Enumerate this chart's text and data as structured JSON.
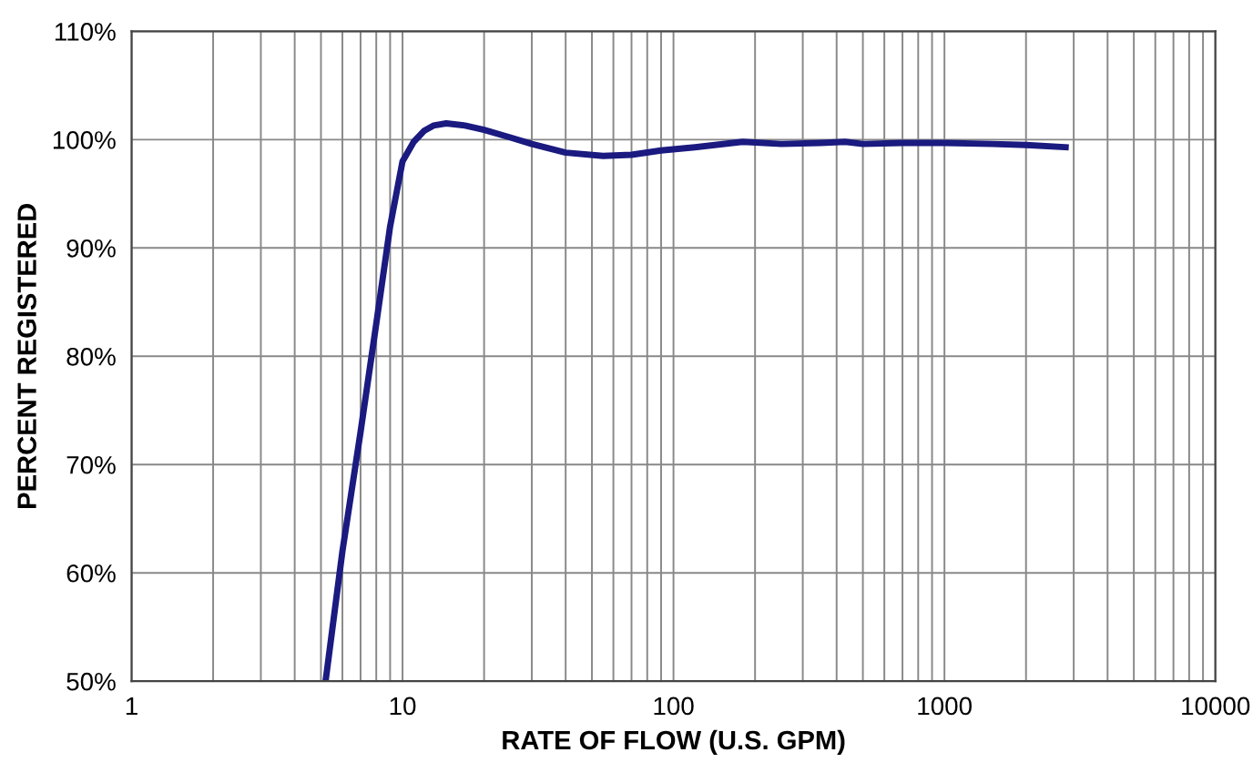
{
  "chart_data": {
    "type": "line",
    "xlabel": "RATE OF FLOW (U.S. GPM)",
    "ylabel": "PERCENT REGISTERED",
    "log": "x",
    "grid": true,
    "marker": "none",
    "line_style": "solid",
    "xlim": [
      1,
      10000
    ],
    "ylim": [
      50,
      110
    ],
    "xticks": [
      1,
      {
        "value": 2,
        "label": null
      },
      {
        "value": 3,
        "label": null
      },
      {
        "value": 4,
        "label": null
      },
      {
        "value": 5,
        "label": null
      },
      {
        "value": 6,
        "label": null
      },
      {
        "value": 7,
        "label": null
      },
      {
        "value": 8,
        "label": null
      },
      {
        "value": 9,
        "label": null
      },
      10,
      {
        "value": 20,
        "label": null
      },
      {
        "value": 30,
        "label": null
      },
      {
        "value": 40,
        "label": null
      },
      {
        "value": 50,
        "label": null
      },
      {
        "value": 60,
        "label": null
      },
      {
        "value": 70,
        "label": null
      },
      {
        "value": 80,
        "label": null
      },
      {
        "value": 90,
        "label": null
      },
      100,
      {
        "value": 200,
        "label": null
      },
      {
        "value": 300,
        "label": null
      },
      {
        "value": 400,
        "label": null
      },
      {
        "value": 500,
        "label": null
      },
      {
        "value": 600,
        "label": null
      },
      {
        "value": 700,
        "label": null
      },
      {
        "value": 800,
        "label": null
      },
      {
        "value": 900,
        "label": null
      },
      1000,
      {
        "value": 2000,
        "label": null
      },
      {
        "value": 3000,
        "label": null
      },
      {
        "value": 4000,
        "label": null
      },
      {
        "value": 5000,
        "label": null
      },
      {
        "value": 6000,
        "label": null
      },
      {
        "value": 7000,
        "label": null
      },
      {
        "value": 8000,
        "label": null
      },
      {
        "value": 9000,
        "label": null
      },
      10000
    ],
    "yticks": [
      {
        "value": 50,
        "label": "50%"
      },
      {
        "value": 60,
        "label": "60%"
      },
      {
        "value": 70,
        "label": "70%"
      },
      {
        "value": 80,
        "label": "80%"
      },
      {
        "value": 90,
        "label": "90%"
      },
      {
        "value": 100,
        "label": "100%"
      },
      {
        "value": 110,
        "label": "110%"
      }
    ],
    "series": [
      {
        "color": "#1a1a80",
        "x": [
          5.2,
          6,
          7,
          8,
          9,
          10,
          11,
          12,
          13,
          14.5,
          17,
          20,
          25,
          30,
          40,
          55,
          70,
          90,
          120,
          180,
          250,
          350,
          430,
          500,
          700,
          1000,
          1500,
          2000,
          2800
        ],
        "values": [
          50,
          62,
          73,
          83,
          92,
          98,
          99.8,
          100.8,
          101.3,
          101.5,
          101.3,
          100.9,
          100.2,
          99.6,
          98.8,
          98.5,
          98.6,
          99.0,
          99.3,
          99.8,
          99.6,
          99.7,
          99.8,
          99.6,
          99.7,
          99.7,
          99.6,
          99.5,
          99.3
        ]
      }
    ]
  }
}
